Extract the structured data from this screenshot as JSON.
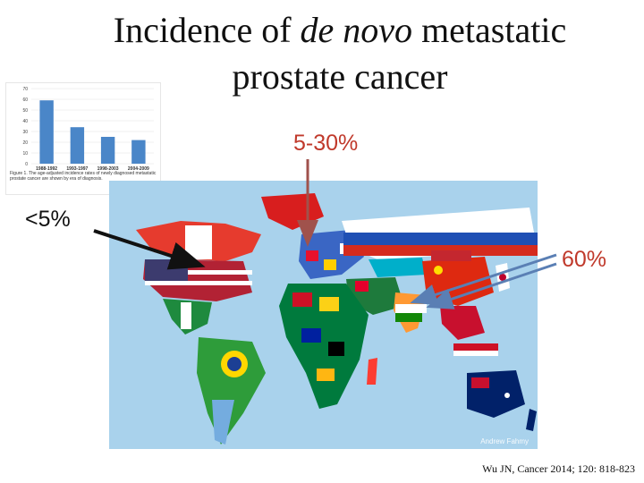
{
  "title": {
    "part1": "Incidence of ",
    "italic": "de novo",
    "part2": " metastatic",
    "line2": "prostate cancer"
  },
  "labels": {
    "left": "<5%",
    "middle": "5-30%",
    "right": "60%"
  },
  "citation": "Wu JN, Cancer 2014; 120: 818-823",
  "map_credit": "Andrew Fahmy",
  "mini_chart": {
    "chart_data": {
      "type": "bar",
      "categories": [
        "1988-1992",
        "1993-1997",
        "1998-2003",
        "2004-2009"
      ],
      "values": [
        59,
        34,
        25,
        22
      ],
      "ylim": [
        0,
        70
      ],
      "yticks": [
        0,
        10,
        20,
        30,
        40,
        50,
        60,
        70
      ],
      "bar_color": "#4a86c8"
    },
    "caption": "Figure 1. The age-adjusted incidence rates of newly diagnosed metastatic prostate cancer are shown by era of diagnosis."
  }
}
